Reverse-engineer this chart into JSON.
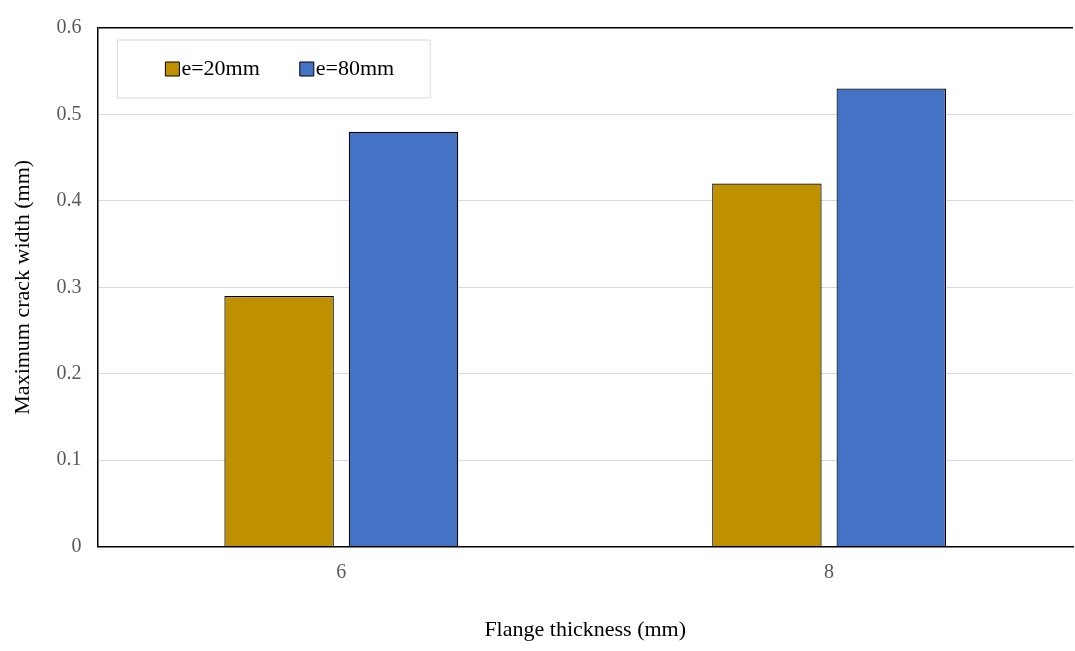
{
  "chart_data": {
    "type": "bar",
    "xlabel": "Flange thickness (mm)",
    "ylabel": "Maximum crack width (mm)",
    "categories": [
      "6",
      "8"
    ],
    "series": [
      {
        "name": "e=20mm",
        "color": "#bf9000",
        "values": [
          0.29,
          0.42
        ]
      },
      {
        "name": "e=80mm",
        "color": "#4472c4",
        "values": [
          0.48,
          0.53
        ]
      }
    ],
    "ylim": [
      0,
      0.6
    ],
    "yticks": [
      0,
      0.1,
      0.2,
      0.3,
      0.4,
      0.5,
      0.6
    ],
    "grid": "y",
    "legend": "top left"
  }
}
